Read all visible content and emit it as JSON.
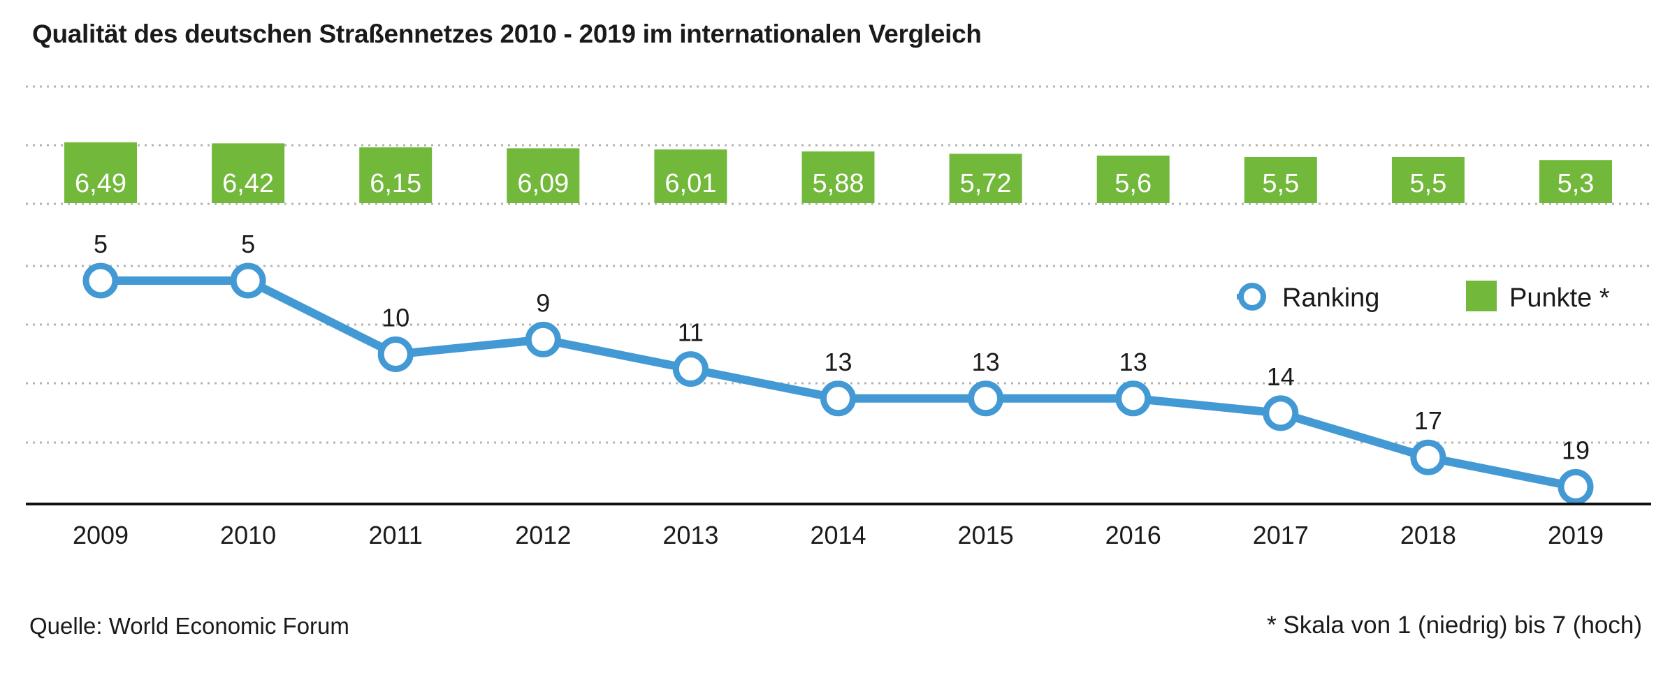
{
  "chart_data": {
    "type": "bar+line",
    "title": "Qualität des deutschen Straßennetzes 2010 - 2019 im internationalen Vergleich",
    "categories": [
      "2009",
      "2010",
      "2011",
      "2012",
      "2013",
      "2014",
      "2015",
      "2016",
      "2017",
      "2018",
      "2019"
    ],
    "series": [
      {
        "name": "Punkte *",
        "type": "bar",
        "color": "#72b83a",
        "values": [
          6.49,
          6.42,
          6.15,
          6.09,
          6.01,
          5.88,
          5.72,
          5.6,
          5.5,
          5.5,
          5.3
        ],
        "labels": [
          "6,49",
          "6,42",
          "6,15",
          "6,09",
          "6,01",
          "5,88",
          "5,72",
          "5,6",
          "5,5",
          "5,5",
          "5,3"
        ]
      },
      {
        "name": "Ranking",
        "type": "line",
        "color": "#4399d4",
        "values": [
          5,
          5,
          10,
          9,
          11,
          13,
          13,
          13,
          14,
          17,
          19
        ],
        "labels": [
          "5",
          "5",
          "10",
          "9",
          "11",
          "13",
          "13",
          "13",
          "14",
          "17",
          "19"
        ]
      }
    ],
    "legend": {
      "position": "right",
      "items": [
        "Ranking",
        "Punkte *"
      ]
    },
    "grid": "dotted-horizontal"
  },
  "notes": {
    "source": "Quelle: World Economic Forum",
    "scale": "* Skala von 1 (niedrig) bis 7 (hoch)"
  }
}
